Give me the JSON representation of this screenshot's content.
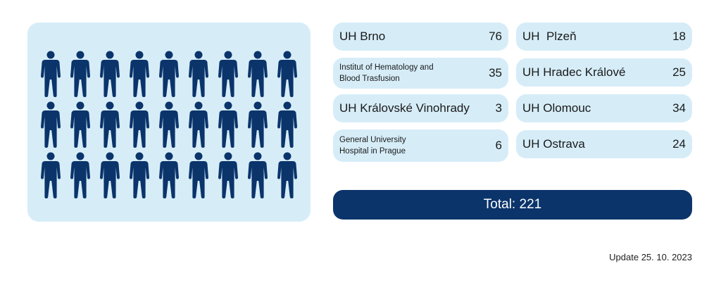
{
  "colors": {
    "panel": "#d6edf8",
    "figure": "#0b346b",
    "total_bar": "#0b346b"
  },
  "icon": "person-icon",
  "people_grid": {
    "rows": 3,
    "cols": 9
  },
  "hospitals": [
    {
      "name": "UH Brno",
      "count": "76"
    },
    {
      "name": "Institut of Hematology and Blood Trasfusion",
      "count": "35"
    },
    {
      "name": "UH Královské Vinohrady",
      "count": "3"
    },
    {
      "name": "General University Hospital in Prague",
      "count": "6"
    },
    {
      "name": "UH  Plzeň",
      "count": "18"
    },
    {
      "name": "UH Hradec Králové",
      "count": "25"
    },
    {
      "name": "UH Olomouc",
      "count": "34"
    },
    {
      "name": "UH Ostrava",
      "count": "24"
    }
  ],
  "total": {
    "label": "Total:",
    "value": "221"
  },
  "update": "Update 25. 10. 2023"
}
